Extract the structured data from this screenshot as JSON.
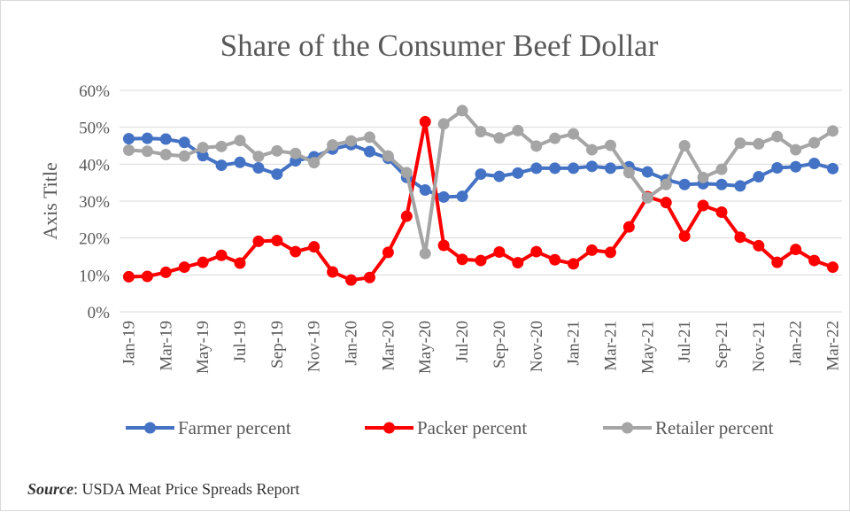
{
  "chart_data": {
    "type": "line",
    "title": "Share of the Consumer Beef Dollar",
    "xlabel": "",
    "ylabel": "Axis Title",
    "ylim": [
      0,
      60
    ],
    "yticks": [
      "0%",
      "10%",
      "20%",
      "30%",
      "40%",
      "50%",
      "60%"
    ],
    "grid": true,
    "legend_position": "bottom",
    "x": [
      "Jan-19",
      "Feb-19",
      "Mar-19",
      "Apr-19",
      "May-19",
      "Jun-19",
      "Jul-19",
      "Aug-19",
      "Sep-19",
      "Oct-19",
      "Nov-19",
      "Dec-19",
      "Jan-20",
      "Feb-20",
      "Mar-20",
      "Apr-20",
      "May-20",
      "Jun-20",
      "Jul-20",
      "Aug-20",
      "Sep-20",
      "Oct-20",
      "Nov-20",
      "Dec-20",
      "Jan-21",
      "Feb-21",
      "Mar-21",
      "Apr-21",
      "May-21",
      "Jun-21",
      "Jul-21",
      "Aug-21",
      "Sep-21",
      "Oct-21",
      "Nov-21",
      "Dec-21",
      "Jan-22",
      "Feb-22",
      "Mar-22"
    ],
    "x_tick_labels": [
      "Jan-19",
      "Mar-19",
      "May-19",
      "Jul-19",
      "Sep-19",
      "Nov-19",
      "Jan-20",
      "Mar-20",
      "May-20",
      "Jul-20",
      "Sep-20",
      "Nov-20",
      "Jan-21",
      "Mar-21",
      "May-21",
      "Jul-21",
      "Sep-21",
      "Nov-21",
      "Jan-22",
      "Mar-22"
    ],
    "series": [
      {
        "name": "Farmer percent",
        "color": "#4472c4",
        "values": [
          46.9,
          47.0,
          46.8,
          45.9,
          42.3,
          39.7,
          40.5,
          39.0,
          37.3,
          40.9,
          42.0,
          44.1,
          45.3,
          43.4,
          41.6,
          36.4,
          33.0,
          31.1,
          31.3,
          37.3,
          36.7,
          37.6,
          38.9,
          38.9,
          38.9,
          39.4,
          38.9,
          39.3,
          37.9,
          35.8,
          34.5,
          34.7,
          34.5,
          34.1,
          36.6,
          39.0,
          39.3,
          40.2,
          38.8
        ]
      },
      {
        "name": "Packer percent",
        "color": "#ff0000",
        "values": [
          9.5,
          9.6,
          10.7,
          12.1,
          13.4,
          15.3,
          13.2,
          19.1,
          19.3,
          16.3,
          17.6,
          10.8,
          8.6,
          9.3,
          16.1,
          25.9,
          51.5,
          18.0,
          14.2,
          13.9,
          16.2,
          13.3,
          16.3,
          14.1,
          13.0,
          16.7,
          16.1,
          23.0,
          31.2,
          29.6,
          20.5,
          28.8,
          27.0,
          20.2,
          17.9,
          13.4,
          16.9,
          13.9,
          12.1
        ]
      },
      {
        "name": "Retailer percent",
        "color": "#a5a5a5",
        "values": [
          43.8,
          43.5,
          42.6,
          42.2,
          44.5,
          44.8,
          46.4,
          42.1,
          43.6,
          42.9,
          40.4,
          45.2,
          46.3,
          47.3,
          42.2,
          37.7,
          15.8,
          50.9,
          54.5,
          48.8,
          47.1,
          49.1,
          44.9,
          47.0,
          48.2,
          43.9,
          45.1,
          37.7,
          30.9,
          34.5,
          45.0,
          36.4,
          38.6,
          45.7,
          45.5,
          47.5,
          43.9,
          45.8,
          49.0
        ]
      }
    ]
  },
  "source": {
    "label": "Source",
    "text": ": USDA Meat Price Spreads Report"
  }
}
